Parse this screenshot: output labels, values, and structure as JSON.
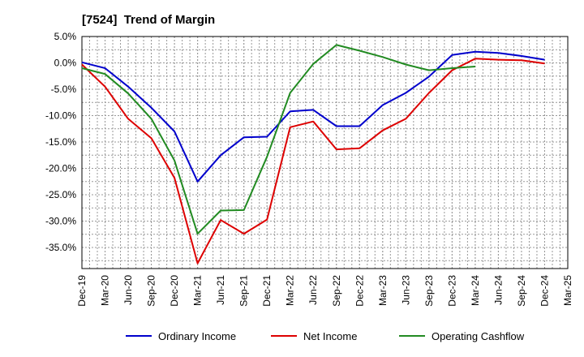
{
  "title": "[7524]  Trend of Margin",
  "chart_data": {
    "type": "line",
    "title": "[7524]  Trend of Margin",
    "xlabel": "",
    "ylabel": "",
    "categories": [
      "Dec-19",
      "Mar-20",
      "Jun-20",
      "Sep-20",
      "Dec-20",
      "Mar-21",
      "Jun-21",
      "Sep-21",
      "Dec-21",
      "Mar-22",
      "Jun-22",
      "Sep-22",
      "Dec-22",
      "Mar-23",
      "Jun-23",
      "Sep-23",
      "Dec-23",
      "Mar-24",
      "Jun-24",
      "Sep-24",
      "Dec-24",
      "Mar-25"
    ],
    "ylim": [
      -39,
      5
    ],
    "yticks": [
      5,
      0,
      -5,
      -10,
      -15,
      -20,
      -25,
      -30,
      -35
    ],
    "ytick_labels": [
      "5.0%",
      "0.0%",
      "-5.0%",
      "-10.0%",
      "-15.0%",
      "-20.0%",
      "-25.0%",
      "-30.0%",
      "-35.0%"
    ],
    "grid": true,
    "legend_position": "bottom",
    "series": [
      {
        "name": "Ordinary Income",
        "color": "#0000cc",
        "x": [
          0,
          1,
          2,
          3,
          4,
          5,
          6,
          7,
          8,
          9,
          10,
          11,
          12,
          13,
          14,
          15,
          16,
          17,
          18,
          19,
          20
        ],
        "values": [
          0.1,
          -1.0,
          -4.5,
          -8.5,
          -13.0,
          -22.5,
          -17.5,
          -14.1,
          -14.0,
          -9.2,
          -8.9,
          -12.0,
          -12.0,
          -8.0,
          -5.7,
          -2.6,
          1.5,
          2.1,
          1.9,
          1.3,
          0.6
        ]
      },
      {
        "name": "Net Income",
        "color": "#dd0000",
        "x": [
          0,
          1,
          2,
          3,
          4,
          5,
          6,
          7,
          8,
          9,
          10,
          11,
          12,
          13,
          14,
          15,
          16,
          17,
          18,
          19,
          20
        ],
        "values": [
          -0.3,
          -4.5,
          -10.6,
          -14.3,
          -21.8,
          -38.0,
          -29.8,
          -32.4,
          -29.7,
          -12.2,
          -11.1,
          -16.4,
          -16.2,
          -12.8,
          -10.6,
          -5.7,
          -1.4,
          0.8,
          0.6,
          0.5,
          -0.1
        ]
      },
      {
        "name": "Operating Cashflow",
        "color": "#228b22",
        "x": [
          0,
          1,
          2,
          3,
          4,
          5,
          6,
          7,
          8,
          9,
          10,
          11,
          12,
          13,
          14,
          15,
          16,
          17
        ],
        "values": [
          -1.0,
          -2.1,
          -5.8,
          -10.6,
          -18.5,
          -32.4,
          -28.0,
          -27.9,
          -17.8,
          -5.7,
          -0.2,
          3.4,
          2.3,
          1.1,
          -0.3,
          -1.4,
          -1.0,
          -0.7
        ]
      }
    ]
  }
}
